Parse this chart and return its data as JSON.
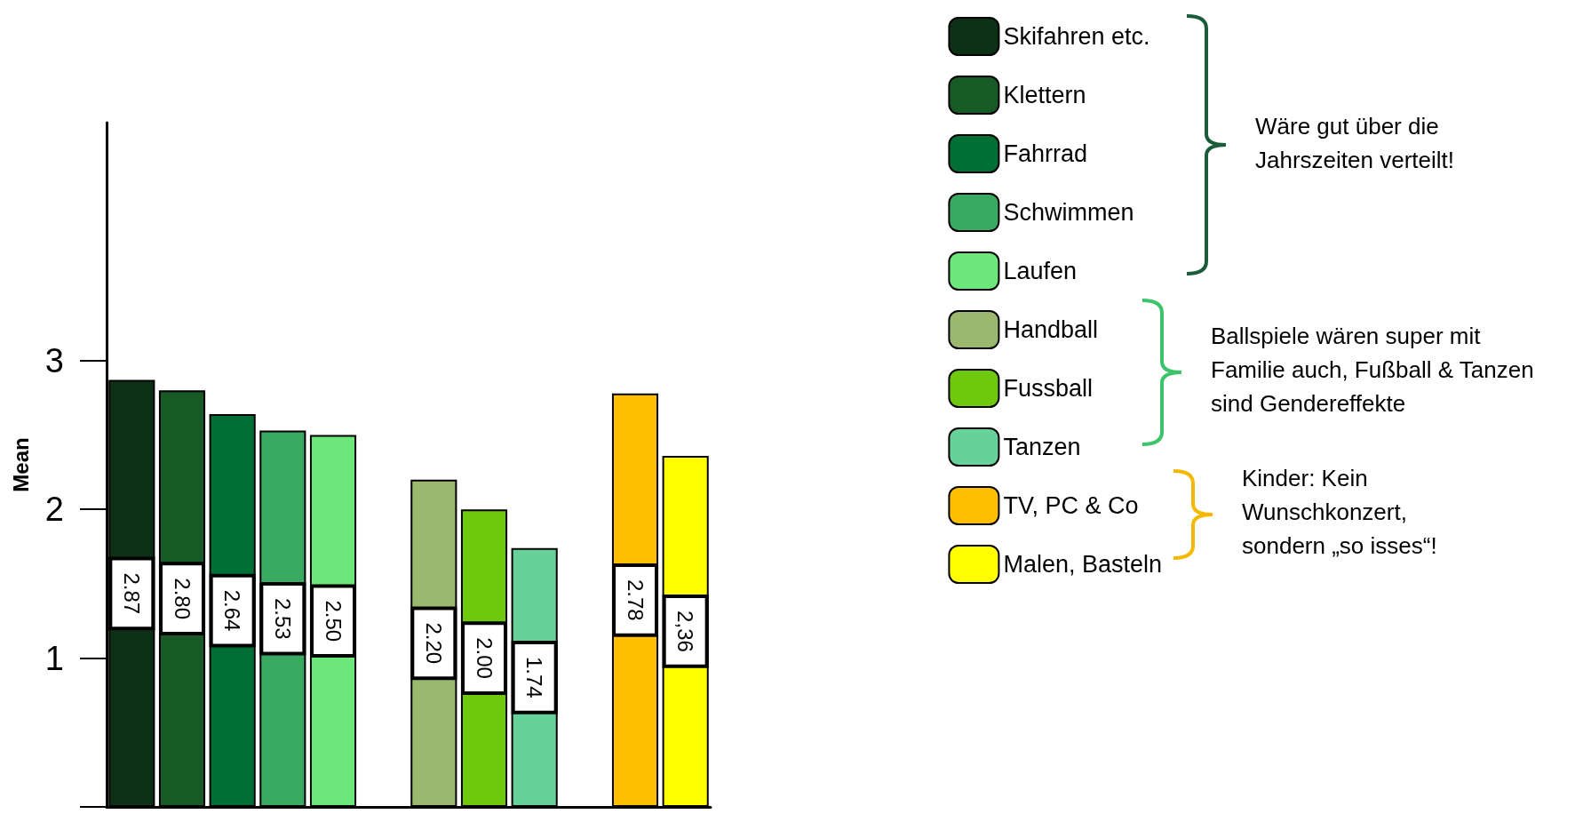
{
  "chart_data": {
    "type": "bar",
    "stacked": true,
    "ylabel": "Mean",
    "ylim": [
      0,
      4.6
    ],
    "yticks": [
      {
        "value": 0,
        "label": null
      },
      1,
      2,
      3
    ],
    "grid": false,
    "legend": "top right",
    "tick_labels": "y",
    "categories": [
      null,
      null,
      null,
      null,
      null,
      null,
      null,
      null,
      null,
      null,
      null,
      null
    ],
    "series": [
      {
        "name": "Skifahren etc.",
        "color": "#0d3117",
        "values": [
          2.87,
          null,
          null,
          null,
          null,
          null,
          null,
          null,
          null,
          null,
          null,
          null
        ],
        "value_labels": [
          "2.87",
          null,
          null,
          null,
          null,
          null,
          null,
          null,
          null,
          null,
          null,
          null
        ]
      },
      {
        "name": "Klettern",
        "color": "#175a25",
        "values": [
          null,
          2.8,
          null,
          null,
          null,
          null,
          null,
          null,
          null,
          null,
          null,
          null
        ],
        "value_labels": [
          null,
          "2.80",
          null,
          null,
          null,
          null,
          null,
          null,
          null,
          null,
          null,
          null
        ]
      },
      {
        "name": "Fahrrad",
        "color": "#006f35",
        "values": [
          null,
          null,
          2.64,
          null,
          null,
          null,
          null,
          null,
          null,
          null,
          null,
          null
        ],
        "value_labels": [
          null,
          null,
          "2.64",
          null,
          null,
          null,
          null,
          null,
          null,
          null,
          null,
          null
        ]
      },
      {
        "name": "Schwimmen",
        "color": "#3aaa60",
        "values": [
          null,
          null,
          null,
          2.53,
          null,
          null,
          null,
          null,
          null,
          null,
          null,
          null
        ],
        "value_labels": [
          null,
          null,
          null,
          "2.53",
          null,
          null,
          null,
          null,
          null,
          null,
          null,
          null
        ]
      },
      {
        "name": "Laufen",
        "color": "#6ce87a",
        "values": [
          null,
          null,
          null,
          null,
          2.5,
          null,
          null,
          null,
          null,
          null,
          null,
          null
        ],
        "value_labels": [
          null,
          null,
          null,
          null,
          "2.50",
          null,
          null,
          null,
          null,
          null,
          null,
          null
        ]
      },
      {
        "name": "Handball",
        "color": "#9bb86e",
        "values": [
          null,
          null,
          null,
          null,
          null,
          null,
          2.2,
          null,
          null,
          null,
          null,
          null
        ],
        "value_labels": [
          null,
          null,
          null,
          null,
          null,
          null,
          "2.20",
          null,
          null,
          null,
          null,
          null
        ]
      },
      {
        "name": "Fussball",
        "color": "#6fc80e",
        "values": [
          null,
          null,
          null,
          null,
          null,
          null,
          null,
          2.0,
          null,
          null,
          null,
          null
        ],
        "value_labels": [
          null,
          null,
          null,
          null,
          null,
          null,
          null,
          "2.00",
          null,
          null,
          null,
          null
        ]
      },
      {
        "name": "Tanzen",
        "color": "#66d29a",
        "values": [
          null,
          null,
          null,
          null,
          null,
          null,
          null,
          null,
          1.74,
          null,
          null,
          null
        ],
        "value_labels": [
          null,
          null,
          null,
          null,
          null,
          null,
          null,
          null,
          "1.74",
          null,
          null,
          null
        ]
      },
      {
        "name": "TV, PC & Co",
        "color": "#ffbf00",
        "values": [
          null,
          null,
          null,
          null,
          null,
          null,
          null,
          null,
          null,
          null,
          2.78,
          null
        ],
        "value_labels": [
          null,
          null,
          null,
          null,
          null,
          null,
          null,
          null,
          null,
          null,
          "2.78",
          null
        ]
      },
      {
        "name": "Malen, Basteln",
        "color": "#ffff00",
        "values": [
          null,
          null,
          null,
          null,
          null,
          null,
          null,
          null,
          null,
          null,
          null,
          2.36
        ],
        "value_labels": [
          null,
          null,
          null,
          null,
          null,
          null,
          null,
          null,
          null,
          null,
          null,
          "2,36"
        ]
      }
    ],
    "annotations": [
      "Wäre gut über die\nJahrszeiten verteilt!",
      "Ballspiele wären super mit\nFamilie auch, Fußball & Tanzen\nsind Gendereffekte",
      "Kinder: Kein\nWunschkonzert,\nsondern „so isses“!"
    ]
  }
}
